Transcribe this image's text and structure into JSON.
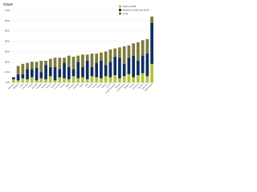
{
  "chart_data": {
    "type": "stacked-bar",
    "title": "Chart",
    "categories": [
      "Romania",
      "Bulgaria",
      "Latvia",
      "Lithuania",
      "Poland",
      "Slovakia",
      "Hungary",
      "Estonia",
      "Greece",
      "Cyprus",
      "Czechia",
      "Croatia",
      "Malta",
      "Portugal",
      "Slovenia",
      "Spain",
      "Italy",
      "Ireland",
      "France",
      "Finland",
      "Iceland",
      "EU-27",
      "United Kingdom",
      "Norway",
      "Luxembourg",
      "Belgium",
      "Austria",
      "Germany",
      "Sweden",
      "Denmark",
      "Netherlands"
    ],
    "series": [
      {
        "name": "Before 2005",
        "color": "#b5c334",
        "values": [
          3,
          2,
          4,
          3,
          5,
          2,
          4,
          3,
          6,
          2,
          5,
          4,
          3,
          6,
          4,
          5,
          3,
          6,
          5,
          4,
          6,
          5,
          7,
          4,
          6,
          8,
          5,
          7,
          9,
          6,
          18
        ]
      },
      {
        "name": "Between 2005 and 2010",
        "color": "#0f2d5e",
        "values": [
          2,
          6,
          4,
          10,
          8,
          12,
          6,
          14,
          9,
          13,
          8,
          15,
          12,
          7,
          16,
          10,
          18,
          9,
          14,
          17,
          11,
          15,
          18,
          20,
          12,
          16,
          21,
          14,
          17,
          22,
          40
        ]
      },
      {
        "name": "Total",
        "color": "#7b7a3a",
        "values": [
          0,
          8,
          10,
          6,
          7,
          6,
          11,
          4,
          8,
          9,
          11,
          5,
          11,
          12,
          6,
          12,
          6,
          13,
          9,
          8,
          13,
          12,
          8,
          10,
          17,
          12,
          12,
          18,
          15,
          14,
          6
        ]
      }
    ],
    "ylim": [
      0,
      70
    ],
    "yticks": [
      {
        "value": 0,
        "label": "0%"
      },
      {
        "value": 10,
        "label": "10%"
      },
      {
        "value": 20,
        "label": "20%"
      },
      {
        "value": 30,
        "label": "30%"
      },
      {
        "value": 40,
        "label": "40%"
      },
      {
        "value": 50,
        "label": "50%"
      },
      {
        "value": 60,
        "label": "60%"
      },
      {
        "value": 70,
        "label": "70%"
      }
    ],
    "grid": true
  }
}
